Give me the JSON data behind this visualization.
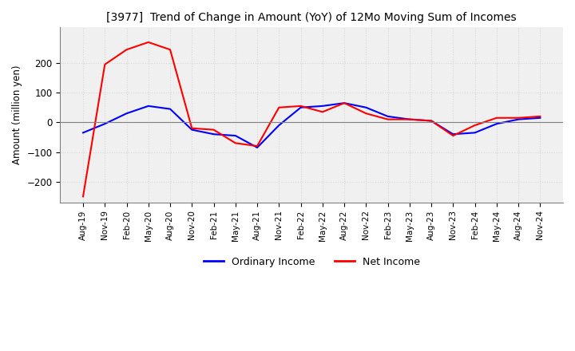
{
  "title": "[3977]  Trend of Change in Amount (YoY) of 12Mo Moving Sum of Incomes",
  "ylabel": "Amount (million yen)",
  "ylim": [
    -270,
    320
  ],
  "yticks": [
    -200,
    -100,
    0,
    100,
    200
  ],
  "legend_labels": [
    "Ordinary Income",
    "Net Income"
  ],
  "line_colors": [
    "blue",
    "red"
  ],
  "x_labels": [
    "Aug-19",
    "Nov-19",
    "Feb-20",
    "May-20",
    "Aug-20",
    "Nov-20",
    "Feb-21",
    "May-21",
    "Aug-21",
    "Nov-21",
    "Feb-22",
    "May-22",
    "Aug-22",
    "Nov-22",
    "Feb-23",
    "May-23",
    "Aug-23",
    "Nov-23",
    "Feb-24",
    "May-24",
    "Aug-24",
    "Nov-24"
  ],
  "ordinary_income": [
    -35,
    -5,
    30,
    55,
    45,
    -25,
    -40,
    -45,
    -85,
    -10,
    50,
    55,
    65,
    50,
    20,
    10,
    5,
    -40,
    -35,
    -5,
    10,
    15
  ],
  "net_income": [
    -250,
    195,
    245,
    270,
    245,
    -20,
    -25,
    -70,
    -80,
    50,
    55,
    35,
    65,
    30,
    10,
    10,
    5,
    -45,
    -10,
    15,
    15,
    20
  ]
}
